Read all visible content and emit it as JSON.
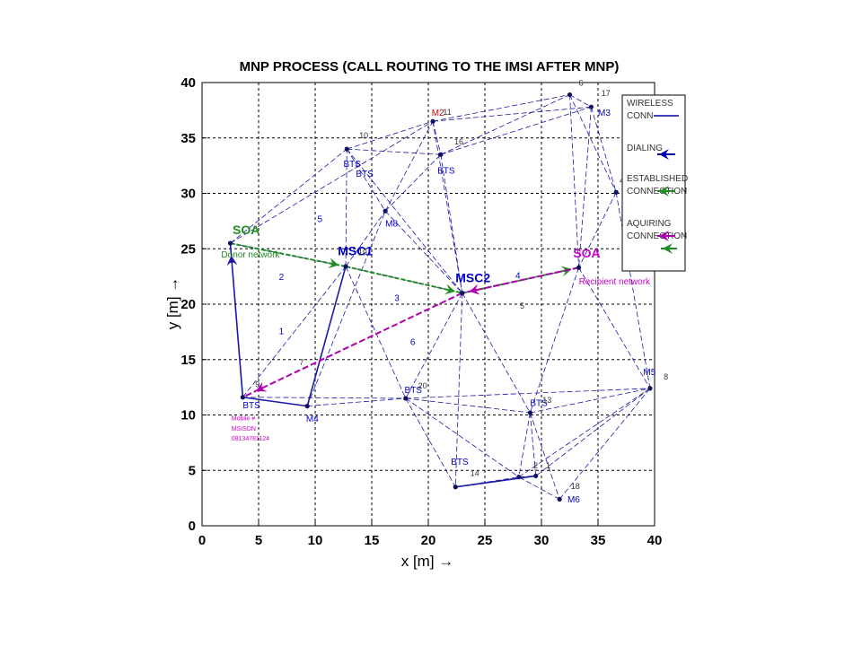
{
  "chart_data": {
    "type": "scatter",
    "title": "MNP PROCESS (CALL ROUTING TO THE IMSI AFTER MNP)",
    "xlabel": "x  [m] →",
    "ylabel": "y  [m] →",
    "xlim": [
      0,
      40
    ],
    "ylim": [
      0,
      40
    ],
    "xticks": [
      0,
      5,
      10,
      15,
      20,
      25,
      30,
      35,
      40
    ],
    "yticks": [
      0,
      5,
      10,
      15,
      20,
      25,
      30,
      35,
      40
    ],
    "grid": true,
    "legend_position": "top-right",
    "legend": [
      {
        "text": "WIRELESS CONN",
        "color": "#0000aa",
        "style": "solid"
      },
      {
        "text": "DIALING",
        "color": "#0000aa",
        "style": "arrow"
      },
      {
        "text": "ESTABLISHED CONNECTION",
        "color": "#228b22",
        "style": "arrow"
      },
      {
        "text": "AQUIRING CONNECTION",
        "color": "#aa00aa",
        "style": "arrow"
      }
    ],
    "nodes": [
      {
        "id": "n1",
        "x": 29.5,
        "y": 4.5
      },
      {
        "id": "n2",
        "x": 28,
        "y": 4.4
      },
      {
        "id": "n3",
        "x": 12.7,
        "y": 23.4
      },
      {
        "id": "n4",
        "x": 36.6,
        "y": 30.1
      },
      {
        "id": "n5",
        "x": 23,
        "y": 21
      },
      {
        "id": "n6",
        "x": 32.5,
        "y": 38.9
      },
      {
        "id": "n7",
        "x": 9.3,
        "y": 10.8
      },
      {
        "id": "n8",
        "x": 39.6,
        "y": 12.4
      },
      {
        "id": "n9",
        "x": 3.6,
        "y": 11.6
      },
      {
        "id": "n10",
        "x": 12.8,
        "y": 34
      },
      {
        "id": "n11",
        "x": 20.4,
        "y": 36.5
      },
      {
        "id": "n12",
        "x": 16.2,
        "y": 28.4
      },
      {
        "id": "n13",
        "x": 29,
        "y": 10.2
      },
      {
        "id": "n14",
        "x": 22.4,
        "y": 3.5
      },
      {
        "id": "n15",
        "x": 21.1,
        "y": 33.5
      },
      {
        "id": "n16",
        "x": 2.5,
        "y": 25.5
      },
      {
        "id": "n17",
        "x": 34.4,
        "y": 37.8
      },
      {
        "id": "n18",
        "x": 31.6,
        "y": 2.4
      },
      {
        "id": "n19",
        "x": 33.3,
        "y": 23.3
      },
      {
        "id": "n20",
        "x": 18,
        "y": 11.5
      }
    ],
    "wireless_links": [
      [
        "n16",
        "n9"
      ],
      [
        "n16",
        "n3"
      ],
      [
        "n16",
        "n11"
      ],
      [
        "n16",
        "n10"
      ],
      [
        "n9",
        "n7"
      ],
      [
        "n9",
        "n20"
      ],
      [
        "n9",
        "n3"
      ],
      [
        "n7",
        "n3"
      ],
      [
        "n7",
        "n20"
      ],
      [
        "n7",
        "n12"
      ],
      [
        "n3",
        "n12"
      ],
      [
        "n3",
        "n10"
      ],
      [
        "n3",
        "n5"
      ],
      [
        "n3",
        "n20"
      ],
      [
        "n10",
        "n11"
      ],
      [
        "n10",
        "n15"
      ],
      [
        "n10",
        "n12"
      ],
      [
        "n10",
        "n5"
      ],
      [
        "n12",
        "n11"
      ],
      [
        "n12",
        "n15"
      ],
      [
        "n12",
        "n5"
      ],
      [
        "n11",
        "n15"
      ],
      [
        "n11",
        "n6"
      ],
      [
        "n11",
        "n17"
      ],
      [
        "n11",
        "n5"
      ],
      [
        "n15",
        "n6"
      ],
      [
        "n15",
        "n17"
      ],
      [
        "n15",
        "n5"
      ],
      [
        "n6",
        "n17"
      ],
      [
        "n6",
        "n4"
      ],
      [
        "n17",
        "n4"
      ],
      [
        "n17",
        "n19"
      ],
      [
        "n6",
        "n19"
      ],
      [
        "n4",
        "n19"
      ],
      [
        "n4",
        "n8"
      ],
      [
        "n19",
        "n13"
      ],
      [
        "n19",
        "n8"
      ],
      [
        "n19",
        "n5"
      ],
      [
        "n5",
        "n20"
      ],
      [
        "n5",
        "n13"
      ],
      [
        "n5",
        "n14"
      ],
      [
        "n20",
        "n13"
      ],
      [
        "n20",
        "n14"
      ],
      [
        "n20",
        "n2"
      ],
      [
        "n20",
        "n8"
      ],
      [
        "n13",
        "n8"
      ],
      [
        "n13",
        "n2"
      ],
      [
        "n13",
        "n1"
      ],
      [
        "n13",
        "n18"
      ],
      [
        "n14",
        "n2"
      ],
      [
        "n14",
        "n1"
      ],
      [
        "n2",
        "n1"
      ],
      [
        "n1",
        "n8"
      ],
      [
        "n18",
        "n8"
      ],
      [
        "n18",
        "n2"
      ],
      [
        "n2",
        "n8"
      ]
    ],
    "solid_links": [
      [
        "n16",
        "n9"
      ],
      [
        "n3",
        "n7"
      ],
      [
        "n9",
        "n7"
      ],
      [
        "n14",
        "n1"
      ]
    ],
    "established_path": [
      [
        "n16",
        "n3"
      ],
      [
        "n3",
        "n5"
      ],
      [
        "n5",
        "n19"
      ]
    ],
    "acquiring_path": [
      [
        "n19",
        "n5"
      ],
      [
        "n5",
        "n9"
      ]
    ],
    "node_labels": [
      {
        "text": "SOA",
        "x": 2.7,
        "y": 26.3,
        "color": "#228b22",
        "size": 14,
        "bold": true
      },
      {
        "text": "Donor network",
        "x": 1.7,
        "y": 24.2,
        "color": "#228b22",
        "size": 10,
        "bold": false
      },
      {
        "text": "MSC1",
        "x": 12.0,
        "y": 24.4,
        "color": "#0000cc",
        "size": 14,
        "bold": true
      },
      {
        "text": "MSC2",
        "x": 22.4,
        "y": 22.0,
        "color": "#0000cc",
        "size": 14,
        "bold": true
      },
      {
        "text": "SOA",
        "x": 32.8,
        "y": 24.2,
        "color": "#cc00cc",
        "size": 14,
        "bold": true
      },
      {
        "text": "Recipient network",
        "x": 33.3,
        "y": 21.8,
        "color": "#cc00cc",
        "size": 10,
        "bold": false
      },
      {
        "text": "M2",
        "x": 20.3,
        "y": 37.0,
        "color": "#cc0000",
        "size": 10,
        "bold": false
      },
      {
        "text": "M3",
        "x": 35.0,
        "y": 37.0,
        "color": "#0000cc",
        "size": 10,
        "bold": false
      },
      {
        "text": "M1",
        "x": 37.5,
        "y": 29.8,
        "color": "#0000cc",
        "size": 10,
        "bold": false
      },
      {
        "text": "M8",
        "x": 16.2,
        "y": 27.0,
        "color": "#0000cc",
        "size": 10,
        "bold": false
      },
      {
        "text": "M4",
        "x": 9.2,
        "y": 9.4,
        "color": "#0000cc",
        "size": 10,
        "bold": false
      },
      {
        "text": "M5",
        "x": 39.0,
        "y": 13.6,
        "color": "#0000cc",
        "size": 10,
        "bold": false
      },
      {
        "text": "M6",
        "x": 32.3,
        "y": 2.1,
        "color": "#0000cc",
        "size": 10,
        "bold": false
      },
      {
        "text": "BTS",
        "x": 12.5,
        "y": 32.4,
        "color": "#0000cc",
        "size": 10,
        "bold": false
      },
      {
        "text": "BTS",
        "x": 13.6,
        "y": 31.5,
        "color": "#0000cc",
        "size": 10,
        "bold": false
      },
      {
        "text": "BTS",
        "x": 20.8,
        "y": 31.8,
        "color": "#0000cc",
        "size": 10,
        "bold": false
      },
      {
        "text": "BTS",
        "x": 17.9,
        "y": 12.0,
        "color": "#0000cc",
        "size": 10,
        "bold": false
      },
      {
        "text": "BTS",
        "x": 29.0,
        "y": 10.8,
        "color": "#0000cc",
        "size": 10,
        "bold": false
      },
      {
        "text": "BTS",
        "x": 22.0,
        "y": 5.5,
        "color": "#0000cc",
        "size": 10,
        "bold": false
      },
      {
        "text": "BTS",
        "x": 3.6,
        "y": 10.6,
        "color": "#0000cc",
        "size": 10,
        "bold": false
      },
      {
        "text": "Mobile #",
        "x": 2.6,
        "y": 9.5,
        "color": "#cc00cc",
        "size": 7,
        "bold": false
      },
      {
        "text": "MSISDN",
        "x": 2.6,
        "y": 8.6,
        "color": "#cc00cc",
        "size": 7,
        "bold": false
      },
      {
        "text": "08134781124",
        "x": 2.6,
        "y": 7.7,
        "color": "#cc00cc",
        "size": 7,
        "bold": false
      },
      {
        "text": "10",
        "x": 13.9,
        "y": 35.0,
        "color": "#333333",
        "size": 9,
        "bold": false
      },
      {
        "text": "11",
        "x": 21.3,
        "y": 37.1,
        "color": "#333333",
        "size": 9,
        "bold": false
      },
      {
        "text": "16",
        "x": 22.3,
        "y": 34.4,
        "color": "#333333",
        "size": 9,
        "bold": false
      },
      {
        "text": "6",
        "x": 33.3,
        "y": 39.7,
        "color": "#333333",
        "size": 9,
        "bold": false
      },
      {
        "text": "17",
        "x": 35.3,
        "y": 38.8,
        "color": "#333333",
        "size": 9,
        "bold": false
      },
      {
        "text": "4",
        "x": 36.9,
        "y": 30.9,
        "color": "#333333",
        "size": 9,
        "bold": false
      },
      {
        "text": "7",
        "x": 8.6,
        "y": 14.5,
        "color": "#333333",
        "size": 9,
        "bold": false
      },
      {
        "text": "9",
        "x": 4.7,
        "y": 12.5,
        "color": "#333333",
        "size": 9,
        "bold": false
      },
      {
        "text": "20",
        "x": 19.1,
        "y": 12.4,
        "color": "#333333",
        "size": 9,
        "bold": false
      },
      {
        "text": "13",
        "x": 30.1,
        "y": 11.1,
        "color": "#333333",
        "size": 9,
        "bold": false
      },
      {
        "text": "8",
        "x": 40.8,
        "y": 13.2,
        "color": "#333333",
        "size": 9,
        "bold": false
      },
      {
        "text": "14",
        "x": 23.7,
        "y": 4.5,
        "color": "#333333",
        "size": 9,
        "bold": false
      },
      {
        "text": "2",
        "x": 29.3,
        "y": 5.2,
        "color": "#333333",
        "size": 9,
        "bold": false
      },
      {
        "text": "1",
        "x": 30.4,
        "y": 5.2,
        "color": "#333333",
        "size": 9,
        "bold": false
      },
      {
        "text": "18",
        "x": 32.6,
        "y": 3.3,
        "color": "#333333",
        "size": 9,
        "bold": false
      },
      {
        "text": "5",
        "x": 28.1,
        "y": 19.6,
        "color": "#333333",
        "size": 9,
        "bold": false
      },
      {
        "text": "19",
        "x": 13.8,
        "y": 24.4,
        "color": "#333333",
        "size": 9,
        "bold": false
      },
      {
        "text": "5",
        "x": 10.2,
        "y": 27.4,
        "color": "#0000cc",
        "size": 10,
        "bold": false
      },
      {
        "text": "2",
        "x": 6.8,
        "y": 22.2,
        "color": "#0000cc",
        "size": 10,
        "bold": false
      },
      {
        "text": "3",
        "x": 17.0,
        "y": 20.3,
        "color": "#0000cc",
        "size": 10,
        "bold": false
      },
      {
        "text": "4",
        "x": 27.7,
        "y": 22.3,
        "color": "#0000cc",
        "size": 10,
        "bold": false
      },
      {
        "text": "1",
        "x": 6.8,
        "y": 17.3,
        "color": "#0000cc",
        "size": 10,
        "bold": false
      },
      {
        "text": "6",
        "x": 18.4,
        "y": 16.3,
        "color": "#0000cc",
        "size": 10,
        "bold": false
      }
    ]
  }
}
